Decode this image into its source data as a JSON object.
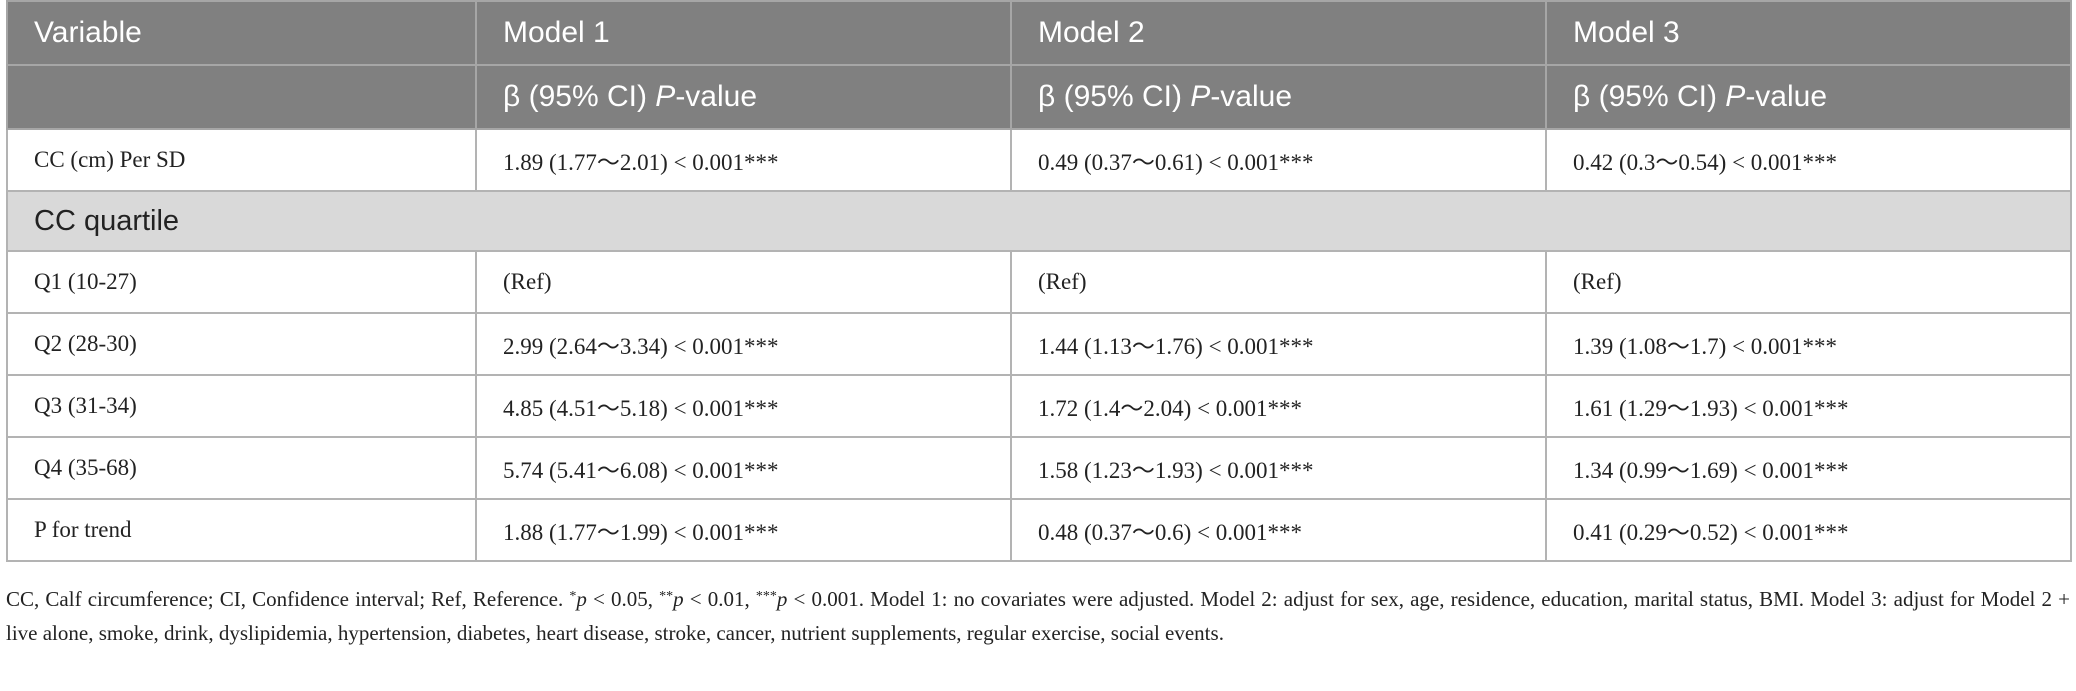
{
  "table": {
    "header": [
      "Variable",
      "Model 1",
      "Model 2",
      "Model 3"
    ],
    "subheader": [
      [
        "β (95% CI) ",
        "P",
        "-value"
      ],
      [
        "β (95% CI) ",
        "P",
        "-value"
      ],
      [
        "β (95% CI) ",
        "P",
        "-value"
      ]
    ],
    "rows": [
      [
        "CC (cm) Per SD",
        "1.89 (1.77～2.01) < 0.001***",
        "0.49 (0.37～0.61) < 0.001***",
        "0.42 (0.3～0.54) < 0.001***"
      ],
      [
        "CC quartile"
      ],
      [
        "Q1 (10-27)",
        "(Ref)",
        "(Ref)",
        "(Ref)"
      ],
      [
        "Q2 (28-30)",
        "2.99 (2.64～3.34) < 0.001***",
        "1.44 (1.13～1.76) < 0.001***",
        "1.39 (1.08～1.7) < 0.001***"
      ],
      [
        "Q3 (31-34)",
        "4.85 (4.51～5.18) < 0.001***",
        "1.72 (1.4～2.04) < 0.001***",
        "1.61 (1.29～1.93) < 0.001***"
      ],
      [
        "Q4 (35-68)",
        "5.74 (5.41～6.08) < 0.001***",
        "1.58 (1.23～1.93) < 0.001***",
        "1.34 (0.99～1.69) < 0.001***"
      ],
      [
        "P for trend",
        "1.88 (1.77～1.99) < 0.001***",
        "0.48 (0.37～0.6) < 0.001***",
        "0.41 (0.29～0.52) < 0.001***"
      ]
    ]
  },
  "footnote": [
    "CC, Calf circumference; CI, Confidence interval; Ref, Reference. ",
    "*",
    "p",
    " < 0.05, ",
    "**",
    "p",
    " < 0.01, ",
    "***",
    "p",
    " < 0.001. Model 1: no covariates were adjusted. Model 2: adjust for sex, age, residence, education, marital status, BMI. Model 3: adjust for Model 2 + live alone, smoke, drink, dyslipidemia, hypertension, diabetes, heart disease, stroke, cancer, nutrient supplements, regular exercise, social events."
  ]
}
